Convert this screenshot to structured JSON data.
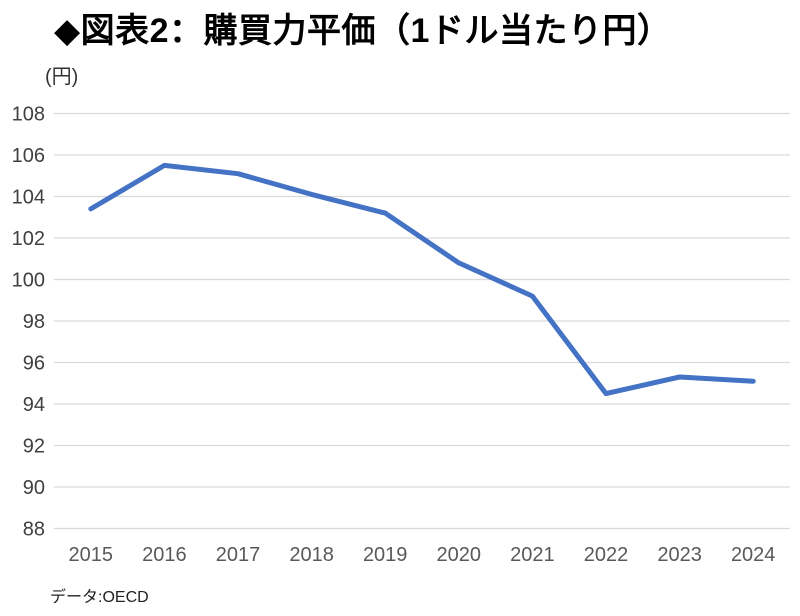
{
  "header": {
    "title": "◆図表2：購買力平価（1ドル当たり円）"
  },
  "chart": {
    "unit_label": "(円)",
    "source": "データ:OECD"
  },
  "chart_data": {
    "type": "line",
    "title": "図表2：購買力平価（1ドル当たり円）",
    "xlabel": "",
    "ylabel": "(円)",
    "categories": [
      "2015",
      "2016",
      "2017",
      "2018",
      "2019",
      "2020",
      "2021",
      "2022",
      "2023",
      "2024"
    ],
    "values": [
      103.4,
      105.5,
      105.1,
      104.1,
      103.2,
      100.8,
      99.2,
      94.5,
      95.3,
      95.1
    ],
    "ylim": [
      88,
      108
    ],
    "y_ticks": [
      88,
      90,
      92,
      94,
      96,
      98,
      100,
      102,
      104,
      106,
      108
    ],
    "grid": "horizontal",
    "legend": "none",
    "line_color": "#4472C4",
    "gridline_color": "#D9D9D9",
    "y_tick_label_color": "#404040",
    "x_label_color": "#595959",
    "source": "データ:OECD"
  }
}
